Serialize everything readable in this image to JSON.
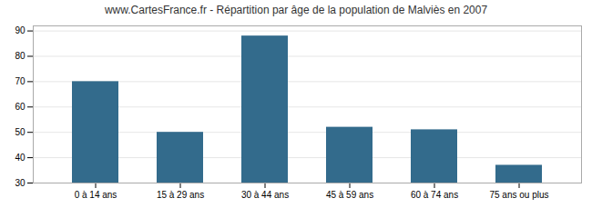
{
  "chart_data": {
    "type": "bar",
    "title": "www.CartesFrance.fr - Répartition par âge de la population de Malviès en 2007",
    "categories": [
      "0 à 14 ans",
      "15 à 29 ans",
      "30 à 44 ans",
      "45 à 59 ans",
      "60 à 74 ans",
      "75 ans ou plus"
    ],
    "values": [
      70,
      50,
      88,
      52,
      51,
      37
    ],
    "color": "#336b8c",
    "ylim": [
      30,
      92
    ],
    "yticks": [
      30,
      40,
      50,
      60,
      70,
      80,
      90
    ],
    "grid": true
  }
}
